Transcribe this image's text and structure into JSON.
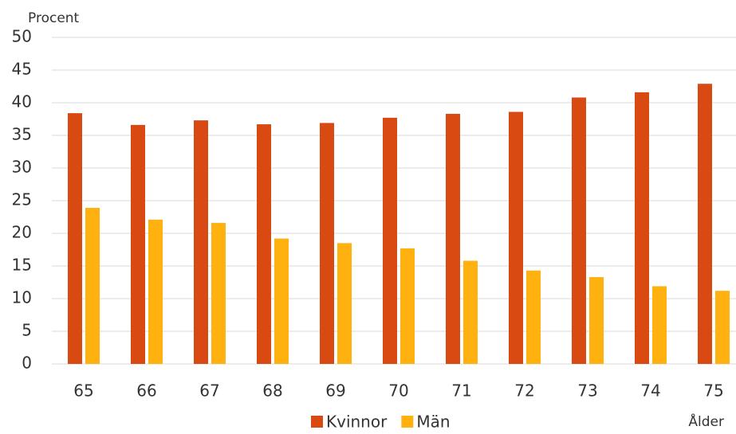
{
  "chart_data": {
    "type": "bar",
    "ylabel": "Procent",
    "xlabel": "Ålder",
    "categories": [
      "65",
      "66",
      "67",
      "68",
      "69",
      "70",
      "71",
      "72",
      "73",
      "74",
      "75"
    ],
    "series": [
      {
        "name": "Kvinnor",
        "color": "#d94a12",
        "values": [
          38.4,
          36.6,
          37.3,
          36.7,
          36.9,
          37.7,
          38.3,
          38.6,
          40.8,
          41.6,
          42.9
        ]
      },
      {
        "name": "Män",
        "color": "#ffb20f",
        "values": [
          23.9,
          22.1,
          21.6,
          19.2,
          18.5,
          17.7,
          15.8,
          14.3,
          13.3,
          11.9,
          11.2
        ]
      }
    ],
    "ylim": [
      0,
      50
    ],
    "yticks": [
      0,
      5,
      10,
      15,
      20,
      25,
      30,
      35,
      40,
      45,
      50
    ],
    "grid": true,
    "legend": "bottom"
  }
}
